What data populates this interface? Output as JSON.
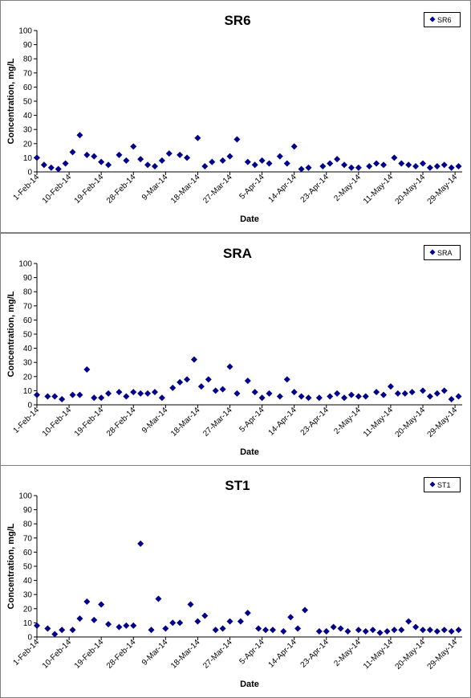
{
  "charts": [
    {
      "chart_data": {
        "type": "scatter",
        "title": "SR6",
        "xlabel": "Date",
        "ylabel": "Concentration, mg/L",
        "ylim": [
          0,
          100
        ],
        "xlim": [
          "2014-02-01",
          "2014-05-31"
        ],
        "x_ticks": [
          "1-Feb-14",
          "10-Feb-14",
          "19-Feb-14",
          "28-Feb-14",
          "9-Mar-14",
          "18-Mar-14",
          "27-Mar-14",
          "5-Apr-14",
          "14-Apr-14",
          "23-Apr-14",
          "2-May-14",
          "11-May-14",
          "20-May-14",
          "29-May-14"
        ],
        "y_ticks": [
          0,
          10,
          20,
          30,
          40,
          50,
          60,
          70,
          80,
          90,
          100
        ],
        "legend": "top-right",
        "grid": false,
        "marker_color": "#00008B",
        "series": [
          {
            "name": "SR6",
            "x": [
              "2014-02-01",
              "2014-02-03",
              "2014-02-05",
              "2014-02-07",
              "2014-02-09",
              "2014-02-11",
              "2014-02-13",
              "2014-02-15",
              "2014-02-17",
              "2014-02-19",
              "2014-02-21",
              "2014-02-24",
              "2014-02-26",
              "2014-02-28",
              "2014-03-02",
              "2014-03-04",
              "2014-03-06",
              "2014-03-08",
              "2014-03-10",
              "2014-03-13",
              "2014-03-15",
              "2014-03-18",
              "2014-03-20",
              "2014-03-22",
              "2014-03-25",
              "2014-03-27",
              "2014-03-29",
              "2014-04-01",
              "2014-04-03",
              "2014-04-05",
              "2014-04-07",
              "2014-04-10",
              "2014-04-12",
              "2014-04-14",
              "2014-04-16",
              "2014-04-18",
              "2014-04-22",
              "2014-04-24",
              "2014-04-26",
              "2014-04-28",
              "2014-04-30",
              "2014-05-02",
              "2014-05-05",
              "2014-05-07",
              "2014-05-09",
              "2014-05-12",
              "2014-05-14",
              "2014-05-16",
              "2014-05-18",
              "2014-05-20",
              "2014-05-22",
              "2014-05-24",
              "2014-05-26",
              "2014-05-28",
              "2014-05-30"
            ],
            "values": [
              10,
              5,
              3,
              2,
              6,
              14,
              26,
              12,
              11,
              7,
              5,
              12,
              8,
              18,
              9,
              5,
              4,
              8,
              13,
              12,
              10,
              24,
              4,
              7,
              8,
              11,
              23,
              7,
              5,
              8,
              6,
              11,
              6,
              18,
              2,
              3,
              4,
              6,
              9,
              5,
              3,
              3,
              4,
              6,
              5,
              10,
              6,
              5,
              4,
              6,
              3,
              4,
              5,
              3,
              4
            ]
          }
        ]
      }
    },
    {
      "chart_data": {
        "type": "scatter",
        "title": "SRA",
        "xlabel": "Date",
        "ylabel": "Concentration, mg/L",
        "ylim": [
          0,
          100
        ],
        "xlim": [
          "2014-02-01",
          "2014-05-31"
        ],
        "x_ticks": [
          "1-Feb-14",
          "10-Feb-14",
          "19-Feb-14",
          "28-Feb-14",
          "9-Mar-14",
          "18-Mar-14",
          "27-Mar-14",
          "5-Apr-14",
          "14-Apr-14",
          "23-Apr-14",
          "2-May-14",
          "11-May-14",
          "20-May-14",
          "29-May-14"
        ],
        "y_ticks": [
          0,
          10,
          20,
          30,
          40,
          50,
          60,
          70,
          80,
          90,
          100
        ],
        "legend": "top-right",
        "grid": false,
        "marker_color": "#00008B",
        "series": [
          {
            "name": "SRA",
            "x": [
              "2014-02-01",
              "2014-02-04",
              "2014-02-06",
              "2014-02-08",
              "2014-02-11",
              "2014-02-13",
              "2014-02-15",
              "2014-02-17",
              "2014-02-19",
              "2014-02-21",
              "2014-02-24",
              "2014-02-26",
              "2014-02-28",
              "2014-03-02",
              "2014-03-04",
              "2014-03-06",
              "2014-03-08",
              "2014-03-11",
              "2014-03-13",
              "2014-03-15",
              "2014-03-17",
              "2014-03-19",
              "2014-03-21",
              "2014-03-23",
              "2014-03-25",
              "2014-03-27",
              "2014-03-29",
              "2014-04-01",
              "2014-04-03",
              "2014-04-05",
              "2014-04-07",
              "2014-04-10",
              "2014-04-12",
              "2014-04-14",
              "2014-04-16",
              "2014-04-18",
              "2014-04-21",
              "2014-04-24",
              "2014-04-26",
              "2014-04-28",
              "2014-04-30",
              "2014-05-02",
              "2014-05-04",
              "2014-05-07",
              "2014-05-09",
              "2014-05-11",
              "2014-05-13",
              "2014-05-15",
              "2014-05-17",
              "2014-05-20",
              "2014-05-22",
              "2014-05-24",
              "2014-05-26",
              "2014-05-28",
              "2014-05-30"
            ],
            "values": [
              7,
              6,
              6,
              4,
              7,
              7,
              25,
              5,
              5,
              8,
              9,
              6,
              9,
              8,
              8,
              9,
              5,
              12,
              16,
              18,
              32,
              13,
              18,
              10,
              11,
              27,
              8,
              17,
              9,
              5,
              8,
              6,
              18,
              9,
              6,
              5,
              5,
              6,
              8,
              5,
              7,
              6,
              6,
              9,
              7,
              13,
              8,
              8,
              9,
              10,
              6,
              8,
              10,
              4,
              6
            ]
          }
        ]
      }
    },
    {
      "chart_data": {
        "type": "scatter",
        "title": "ST1",
        "xlabel": "Date",
        "ylabel": "Concentration, mg/L",
        "ylim": [
          0,
          100
        ],
        "xlim": [
          "2014-02-01",
          "2014-05-31"
        ],
        "x_ticks": [
          "1-Feb-14",
          "10-Feb-14",
          "19-Feb-14",
          "28-Feb-14",
          "9-Mar-14",
          "18-Mar-14",
          "27-Mar-14",
          "5-Apr-14",
          "14-Apr-14",
          "23-Apr-14",
          "2-May-14",
          "11-May-14",
          "20-May-14",
          "29-May-14"
        ],
        "y_ticks": [
          0,
          10,
          20,
          30,
          40,
          50,
          60,
          70,
          80,
          90,
          100
        ],
        "legend": "top-right",
        "grid": false,
        "marker_color": "#00008B",
        "series": [
          {
            "name": "ST1",
            "x": [
              "2014-02-01",
              "2014-02-04",
              "2014-02-06",
              "2014-02-08",
              "2014-02-11",
              "2014-02-13",
              "2014-02-15",
              "2014-02-17",
              "2014-02-19",
              "2014-02-21",
              "2014-02-24",
              "2014-02-26",
              "2014-02-28",
              "2014-03-02",
              "2014-03-05",
              "2014-03-07",
              "2014-03-09",
              "2014-03-11",
              "2014-03-13",
              "2014-03-16",
              "2014-03-18",
              "2014-03-20",
              "2014-03-23",
              "2014-03-25",
              "2014-03-27",
              "2014-03-30",
              "2014-04-01",
              "2014-04-04",
              "2014-04-06",
              "2014-04-08",
              "2014-04-11",
              "2014-04-13",
              "2014-04-15",
              "2014-04-17",
              "2014-04-21",
              "2014-04-23",
              "2014-04-25",
              "2014-04-27",
              "2014-04-29",
              "2014-05-02",
              "2014-05-04",
              "2014-05-06",
              "2014-05-08",
              "2014-05-10",
              "2014-05-12",
              "2014-05-14",
              "2014-05-16",
              "2014-05-18",
              "2014-05-20",
              "2014-05-22",
              "2014-05-24",
              "2014-05-26",
              "2014-05-28",
              "2014-05-30"
            ],
            "values": [
              8,
              6,
              2,
              5,
              5,
              13,
              25,
              12,
              23,
              9,
              7,
              8,
              8,
              66,
              5,
              27,
              6,
              10,
              10,
              23,
              11,
              15,
              5,
              6,
              11,
              11,
              17,
              6,
              5,
              5,
              4,
              14,
              6,
              19,
              4,
              4,
              7,
              6,
              4,
              5,
              4,
              5,
              3,
              4,
              5,
              5,
              11,
              7,
              5,
              5,
              4,
              5,
              4,
              5
            ]
          }
        ]
      }
    }
  ]
}
